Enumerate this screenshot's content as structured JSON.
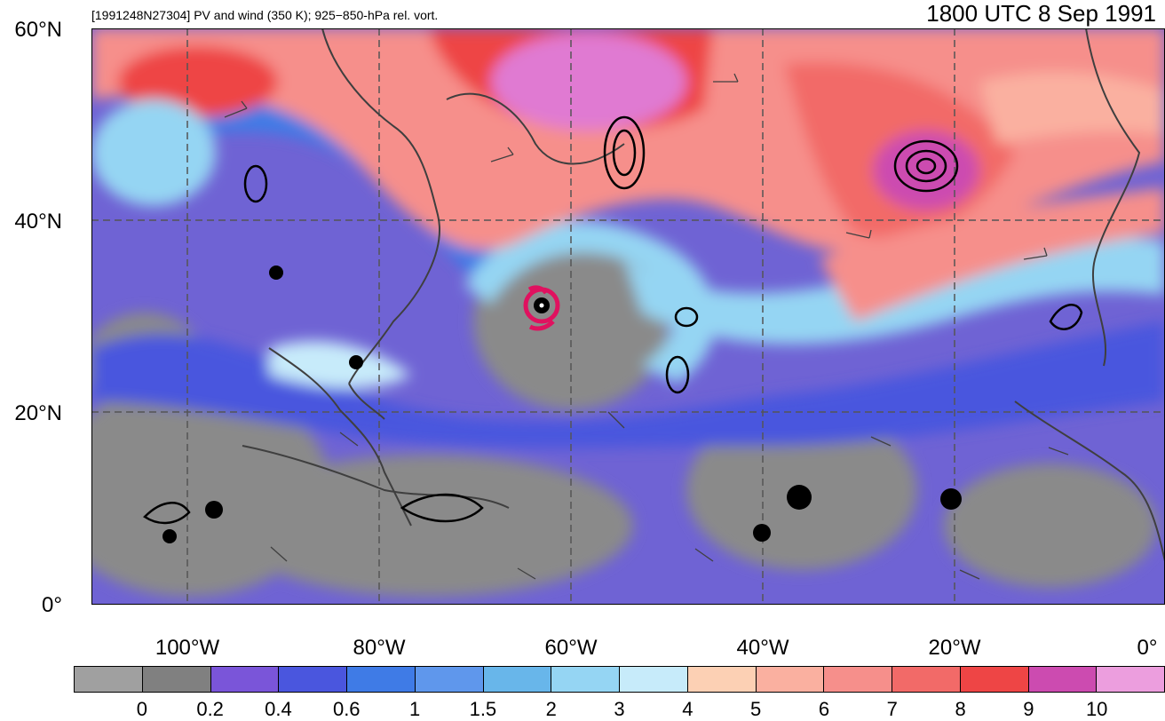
{
  "title": {
    "case": "[1991248N27304] PV and wind (350 K); 925−850-hPa rel. vort.",
    "time": "1800 UTC 8 Sep 1991"
  },
  "map": {
    "lat_range": [
      0,
      60
    ],
    "lon_range": [
      -110,
      2
    ],
    "lat_labels": [
      "60°N",
      "40°N",
      "20°N",
      "0°"
    ],
    "lon_labels": [
      "100°W",
      "80°W",
      "60°W",
      "40°W",
      "20°W",
      "0°"
    ],
    "storm_center": {
      "lat": 31,
      "lon": -63
    }
  },
  "colorbar": {
    "labels": [
      "0",
      "0.2",
      "0.4",
      "0.6",
      "1",
      "1.5",
      "2",
      "3",
      "4",
      "5",
      "6",
      "7",
      "8",
      "9",
      "10"
    ],
    "colors": [
      "#a0a0a0",
      "#808080",
      "#7a55d9",
      "#4a56de",
      "#3f7be6",
      "#5f97ec",
      "#68b6ea",
      "#95d5f3",
      "#c7ebfa",
      "#fcd0b4",
      "#fab0a0",
      "#f68f8b",
      "#f26a68",
      "#ee4545",
      "#cc4bb0",
      "#ec9ede"
    ]
  }
}
